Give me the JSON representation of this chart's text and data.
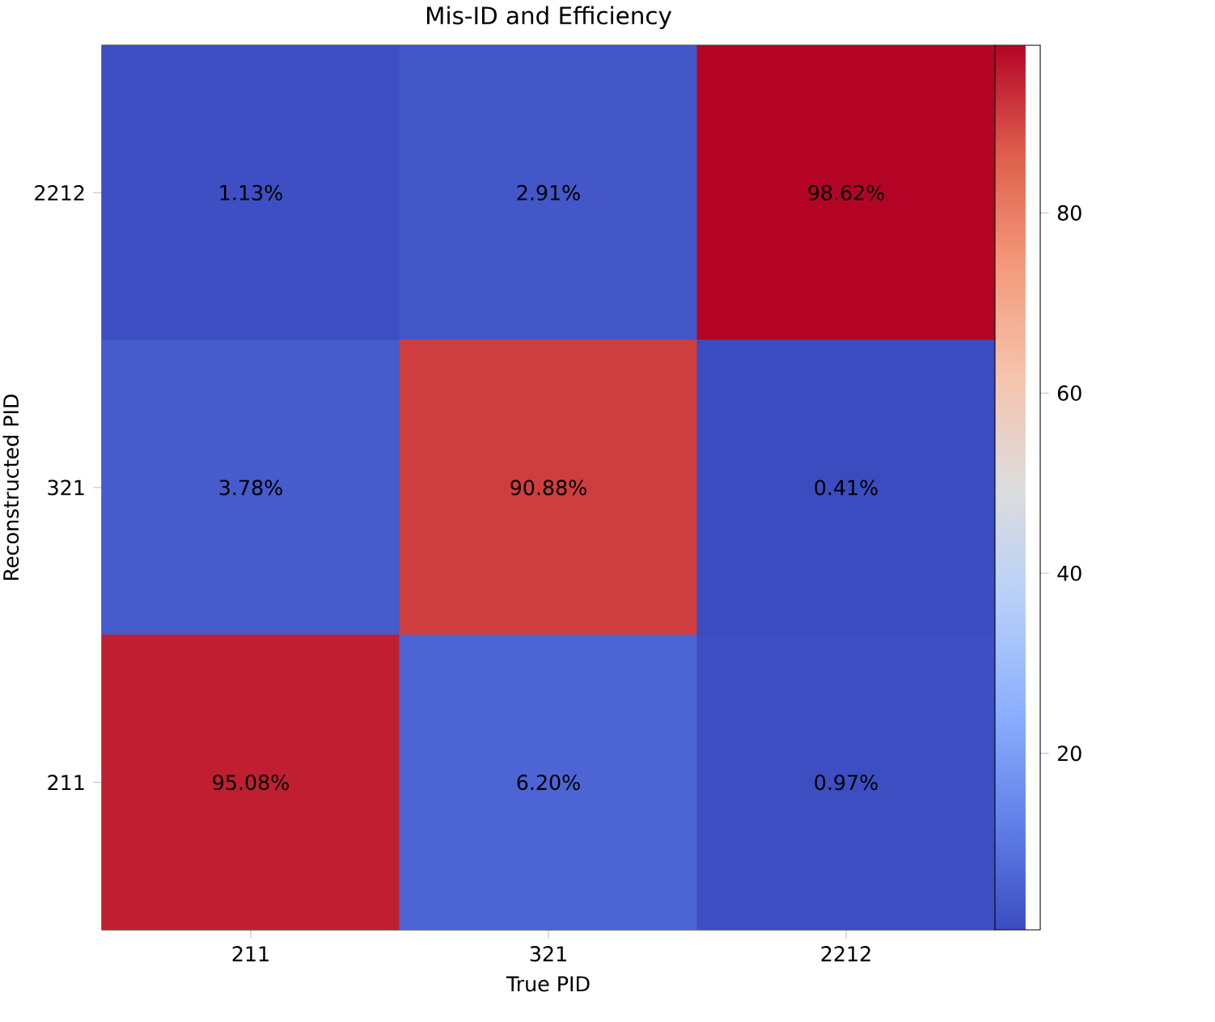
{
  "chart_data": {
    "type": "heatmap",
    "title": "Mis-ID and Efficiency",
    "xlabel": "True PID",
    "ylabel": "Reconstructed PID",
    "categories": [
      "211",
      "321",
      "2212"
    ],
    "y_categories": [
      "2212",
      "321",
      "211"
    ],
    "cells": [
      [
        1.13,
        2.91,
        98.62
      ],
      [
        3.78,
        90.88,
        0.41
      ],
      [
        95.08,
        6.2,
        0.97
      ]
    ],
    "cell_labels": [
      [
        "1.13%",
        "2.91%",
        "98.62%"
      ],
      [
        "3.78%",
        "90.88%",
        "0.41%"
      ],
      [
        "95.08%",
        "6.20%",
        "0.97%"
      ]
    ],
    "clim": [
      0.41,
      98.62
    ],
    "cticks": [
      20,
      40,
      60,
      80
    ]
  }
}
